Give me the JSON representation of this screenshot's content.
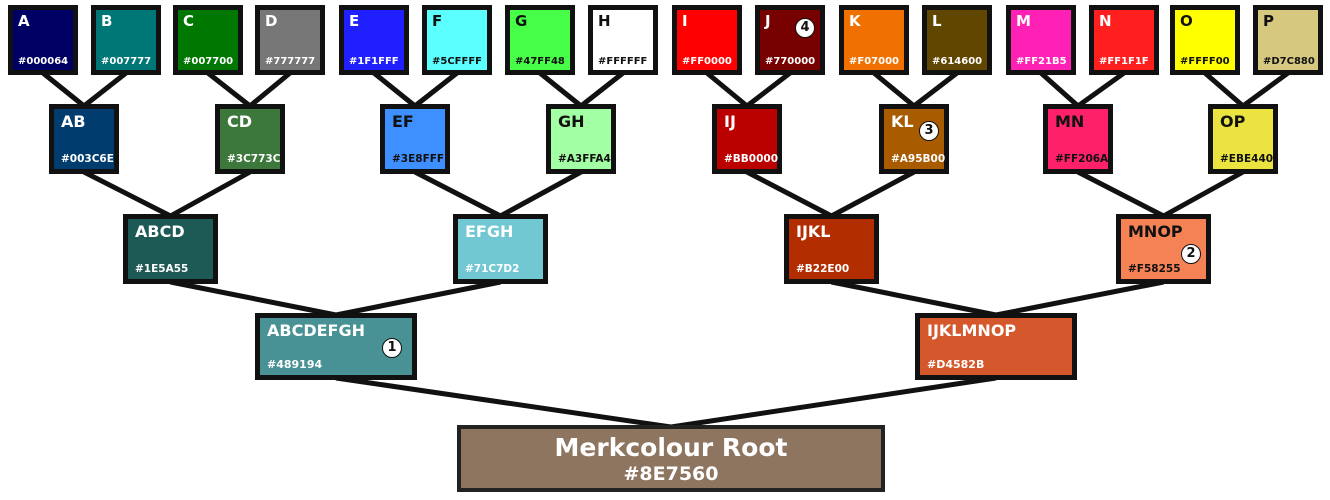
{
  "title": "Merkcolour Root",
  "leaves": [
    {
      "label": "A",
      "hex": "#000064",
      "color": "#000064",
      "text": "light"
    },
    {
      "label": "B",
      "hex": "#007777",
      "color": "#007777",
      "text": "light"
    },
    {
      "label": "C",
      "hex": "#007700",
      "color": "#007700",
      "text": "light"
    },
    {
      "label": "D",
      "hex": "#777777",
      "color": "#777777",
      "text": "light"
    },
    {
      "label": "E",
      "hex": "#1F1FFF",
      "color": "#1F1FFF",
      "text": "light"
    },
    {
      "label": "F",
      "hex": "#5CFFFF",
      "color": "#5CFFFF",
      "text": "dark"
    },
    {
      "label": "G",
      "hex": "#47FF48",
      "color": "#47FF48",
      "text": "dark"
    },
    {
      "label": "H",
      "hex": "#FFFFFF",
      "color": "#FFFFFF",
      "text": "dark"
    },
    {
      "label": "I",
      "hex": "#FF0000",
      "color": "#FF0000",
      "text": "light"
    },
    {
      "label": "J",
      "hex": "#770000",
      "color": "#770000",
      "text": "light"
    },
    {
      "label": "K",
      "hex": "#F07000",
      "color": "#F07000",
      "text": "light"
    },
    {
      "label": "L",
      "hex": "#614600",
      "color": "#614600",
      "text": "light"
    },
    {
      "label": "M",
      "hex": "#FF21B5",
      "color": "#FF21B5",
      "text": "light"
    },
    {
      "label": "N",
      "hex": "#FF1F1F",
      "color": "#FF1F1F",
      "text": "light"
    },
    {
      "label": "O",
      "hex": "#FFFF00",
      "color": "#FFFF00",
      "text": "dark"
    },
    {
      "label": "P",
      "hex": "#D7C880",
      "color": "#D7C880",
      "text": "dark"
    }
  ],
  "pairs": [
    {
      "label": "AB",
      "hex": "#003C6E",
      "color": "#003C6E",
      "text": "light"
    },
    {
      "label": "CD",
      "hex": "#3C773C",
      "color": "#3C773C",
      "text": "light"
    },
    {
      "label": "EF",
      "hex": "#3E8FFF",
      "color": "#3E8FFF",
      "text": "dark"
    },
    {
      "label": "GH",
      "hex": "#A3FFA4",
      "color": "#A3FFA4",
      "text": "dark"
    },
    {
      "label": "IJ",
      "hex": "#BB0000",
      "color": "#BB0000",
      "text": "light"
    },
    {
      "label": "KL",
      "hex": "#A95B00",
      "color": "#A95B00",
      "text": "light"
    },
    {
      "label": "MN",
      "hex": "#FF206A",
      "color": "#FF206A",
      "text": "dark"
    },
    {
      "label": "OP",
      "hex": "#EBE440",
      "color": "#EBE440",
      "text": "dark"
    }
  ],
  "quads": [
    {
      "label": "ABCD",
      "hex": "#1E5A55",
      "color": "#1E5A55",
      "text": "light"
    },
    {
      "label": "EFGH",
      "hex": "#71C7D2",
      "color": "#71C7D2",
      "text": "light"
    },
    {
      "label": "IJKL",
      "hex": "#B22E00",
      "color": "#B22E00",
      "text": "light"
    },
    {
      "label": "MNOP",
      "hex": "#F58255",
      "color": "#F58255",
      "text": "dark"
    }
  ],
  "halves": [
    {
      "label": "ABCDEFGH",
      "hex": "#489194",
      "color": "#489194",
      "text": "light"
    },
    {
      "label": "IJKLMNOP",
      "hex": "#D4582B",
      "color": "#D4582B",
      "text": "light"
    }
  ],
  "root": {
    "label": "Merkcolour Root",
    "hex": "#8E7560",
    "color": "#8E7560"
  },
  "badges": [
    {
      "number": "1",
      "target": "halves.0"
    },
    {
      "number": "2",
      "target": "quads.3"
    },
    {
      "number": "3",
      "target": "pairs.5"
    },
    {
      "number": "4",
      "target": "leaves.9"
    }
  ]
}
